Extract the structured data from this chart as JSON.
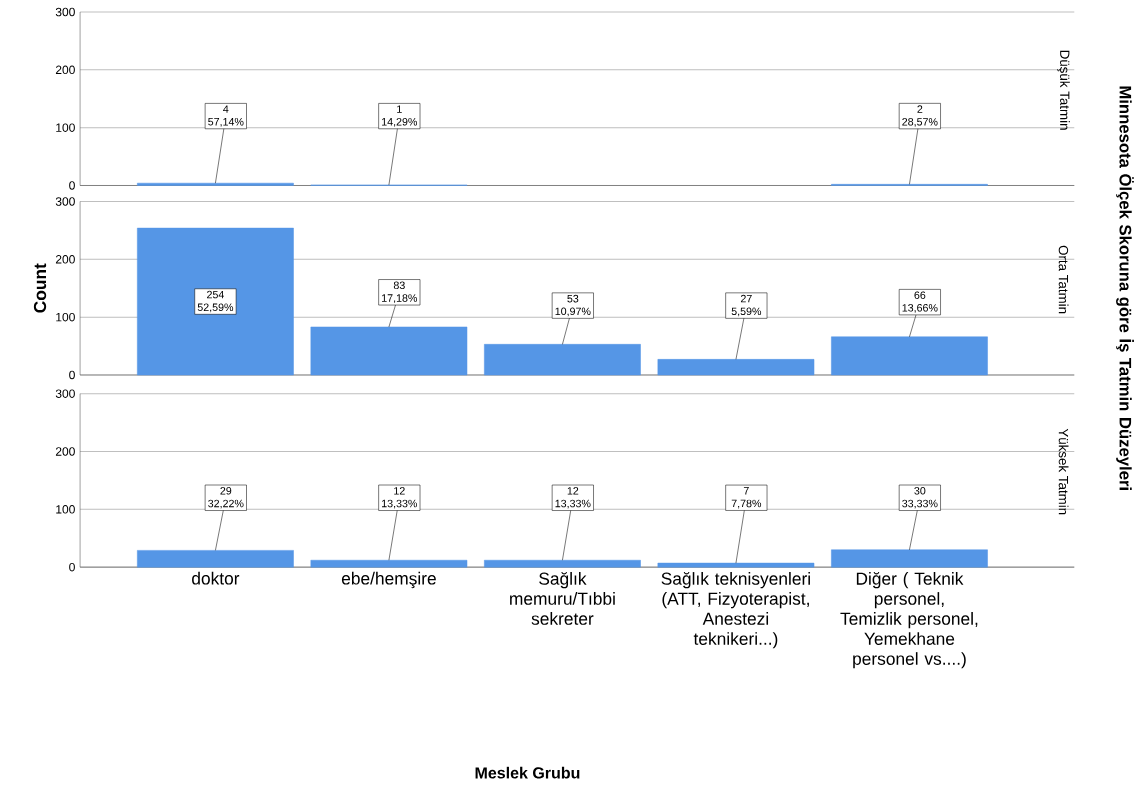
{
  "chart_data": [
    {
      "type": "bar",
      "title": "Düşük Tatmin",
      "categories": [
        null,
        null,
        null,
        null,
        null
      ],
      "values": [
        4,
        1,
        null,
        null,
        2
      ],
      "value_labels": [
        "4 57,14%",
        "1 14,29%",
        null,
        null,
        "2 28,57%"
      ],
      "color": "#5596e6",
      "ylim": [
        0,
        300
      ],
      "yticks": [
        0,
        100,
        200,
        300
      ],
      "grid": "y",
      "tick_labels": "y"
    },
    {
      "type": "bar",
      "title": "Orta Tatmin",
      "ylabel": "Count",
      "y2label": "Minnesota Ölçek Skoruna göre İş Tatmin Düzeyleri",
      "categories": [
        null,
        null,
        null,
        null,
        null
      ],
      "values": [
        254,
        83,
        53,
        27,
        66
      ],
      "value_labels": [
        "254 52,59%",
        "83 17,18%",
        "53 10,97%",
        "27 5,59%",
        "66 13,66%"
      ],
      "color": "#5596e6",
      "ylim": [
        0,
        300
      ],
      "yticks": [
        0,
        100,
        200,
        300
      ],
      "grid": "y",
      "tick_labels": "y"
    },
    {
      "type": "bar",
      "title": "Yüksek Tatmin",
      "xlabel": "Meslek Grubu",
      "categories": [
        "doktor",
        "ebe/hemşire",
        "Sağlık memuru/Tıbbi sekreter",
        "Sağlık teknisyenleri (ATT, Fizyoterapist, Anestezi teknikeri...)",
        "Diğer ( Teknik personel, Temizlik personel, Yemekhane personel vs....)"
      ],
      "values": [
        29,
        12,
        12,
        7,
        30
      ],
      "value_labels": [
        "29 32,22%",
        "12 13,33%",
        "12 13,33%",
        "7 7,78%",
        "30 33,33%"
      ],
      "color": "#5596e6",
      "ylim": [
        0,
        300
      ],
      "yticks": [
        0,
        100,
        200,
        300
      ],
      "grid": "y"
    }
  ]
}
